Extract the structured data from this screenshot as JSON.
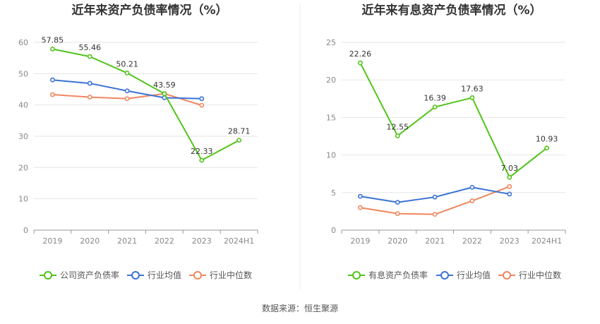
{
  "source": "数据来源：恒生聚源",
  "colors": {
    "company": "#52c41a",
    "industry_avg": "#3a73d6",
    "industry_median": "#f0875f",
    "grid": "#e6e6e6",
    "axis": "#999999",
    "divider": "#eeeeee"
  },
  "chart_data": [
    {
      "type": "line",
      "title": "近年来资产负债率情况（%）",
      "categories": [
        "2019",
        "2020",
        "2021",
        "2022",
        "2023",
        "2024H1"
      ],
      "ylim": [
        0,
        60
      ],
      "yticks": [
        0,
        10,
        20,
        30,
        40,
        50,
        60
      ],
      "grid": true,
      "legend_position": "bottom",
      "series": [
        {
          "name": "公司资产负债率",
          "color_key": "company",
          "values": [
            57.85,
            55.46,
            50.21,
            43.59,
            22.33,
            28.71
          ],
          "labels": [
            "57.85",
            "55.46",
            "50.21",
            "43.59",
            "22.33",
            "28.71"
          ]
        },
        {
          "name": "行业均值",
          "color_key": "industry_avg",
          "values": [
            48.0,
            46.9,
            44.5,
            42.3,
            42.0,
            null
          ],
          "labels": []
        },
        {
          "name": "行业中位数",
          "color_key": "industry_median",
          "values": [
            43.3,
            42.5,
            42.0,
            43.6,
            39.9,
            null
          ],
          "labels": []
        }
      ]
    },
    {
      "type": "line",
      "title": "近年来有息资产负债率情况（%）",
      "categories": [
        "2019",
        "2020",
        "2021",
        "2022",
        "2023",
        "2024H1"
      ],
      "ylim": [
        0,
        25
      ],
      "yticks": [
        0,
        5,
        10,
        15,
        20,
        25
      ],
      "grid": true,
      "legend_position": "bottom",
      "series": [
        {
          "name": "有息资产负债率",
          "color_key": "company",
          "values": [
            22.26,
            12.55,
            16.39,
            17.63,
            7.03,
            10.93
          ],
          "labels": [
            "22.26",
            "12.55",
            "16.39",
            "17.63",
            "7.03",
            "10.93"
          ]
        },
        {
          "name": "行业均值",
          "color_key": "industry_avg",
          "values": [
            4.5,
            3.7,
            4.4,
            5.7,
            4.8,
            null
          ],
          "labels": []
        },
        {
          "name": "行业中位数",
          "color_key": "industry_median",
          "values": [
            3.0,
            2.2,
            2.1,
            3.9,
            5.8,
            null
          ],
          "labels": []
        }
      ]
    }
  ]
}
